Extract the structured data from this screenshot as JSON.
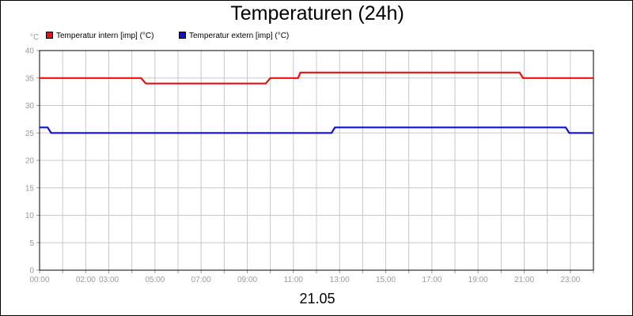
{
  "chart_data": {
    "type": "line",
    "title": "Temperaturen (24h)",
    "ylabel": "°C",
    "xlabel": "21.05",
    "ylim": [
      0,
      40
    ],
    "xlim": [
      0,
      24
    ],
    "yticks": [
      0,
      5,
      10,
      15,
      20,
      25,
      30,
      35,
      40
    ],
    "xticks": [
      {
        "x": 0,
        "label": "00:00"
      },
      {
        "x": 2,
        "label": "02:00"
      },
      {
        "x": 3,
        "label": "03:00"
      },
      {
        "x": 5,
        "label": "05:00"
      },
      {
        "x": 7,
        "label": "07:00"
      },
      {
        "x": 9,
        "label": "09:00"
      },
      {
        "x": 11,
        "label": "11:00"
      },
      {
        "x": 13,
        "label": "13:00"
      },
      {
        "x": 15,
        "label": "15:00"
      },
      {
        "x": 17,
        "label": "17:00"
      },
      {
        "x": 19,
        "label": "19:00"
      },
      {
        "x": 21,
        "label": "21:00"
      },
      {
        "x": 23,
        "label": "23:00"
      }
    ],
    "grid": true,
    "legend_position": "top-left",
    "series": [
      {
        "name": "Temperatur intern [imp] (°C)",
        "color": "#e81010",
        "points": [
          [
            0,
            35
          ],
          [
            4.4,
            35
          ],
          [
            4.6,
            34
          ],
          [
            9.8,
            34
          ],
          [
            10.0,
            35
          ],
          [
            11.2,
            35
          ],
          [
            11.3,
            36
          ],
          [
            20.8,
            36
          ],
          [
            20.95,
            35
          ],
          [
            24,
            35
          ]
        ]
      },
      {
        "name": "Temperatur extern [imp] (°C)",
        "color": "#1010d8",
        "points": [
          [
            0,
            26
          ],
          [
            0.35,
            26
          ],
          [
            0.5,
            25
          ],
          [
            12.65,
            25
          ],
          [
            12.8,
            26
          ],
          [
            22.8,
            26
          ],
          [
            22.95,
            25
          ],
          [
            24,
            25
          ]
        ]
      }
    ]
  }
}
